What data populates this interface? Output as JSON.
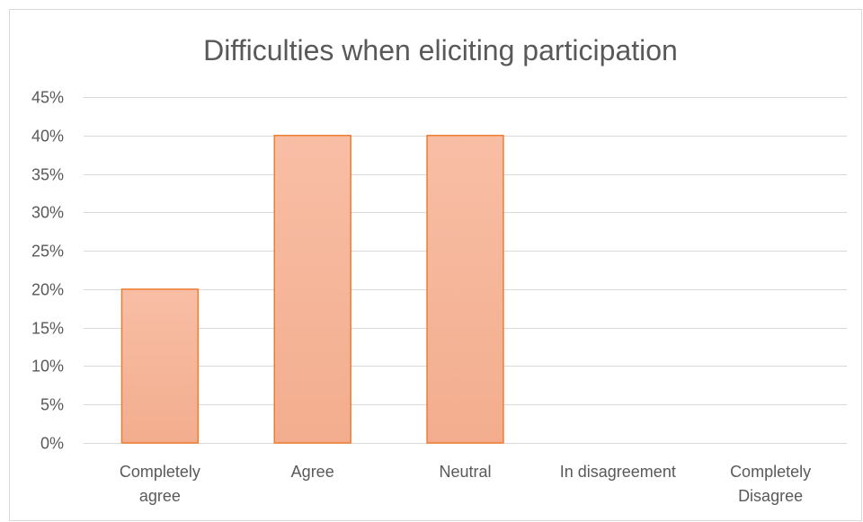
{
  "chart_data": {
    "type": "bar",
    "title": "Difficulties when eliciting participation",
    "categories": [
      [
        "Completely",
        "agree"
      ],
      [
        "Agree"
      ],
      [
        "Neutral"
      ],
      [
        "In disagreement"
      ],
      [
        "Completely",
        "Disagree"
      ]
    ],
    "values": [
      20,
      40,
      40,
      0,
      0
    ],
    "y_unit": "%",
    "ylim": [
      0,
      45
    ],
    "y_ticks": [
      "0%",
      "5%",
      "10%",
      "15%",
      "20%",
      "25%",
      "30%",
      "35%",
      "40%",
      "45%"
    ],
    "grid": true,
    "legend": "none",
    "colors": {
      "bar_fill_top": "#f8bea5",
      "bar_fill_bottom": "#f3ad8e",
      "bar_stroke": "#ed7d31",
      "grid": "#d9d9d9",
      "text": "#595959",
      "frame": "#d9d9d9"
    }
  }
}
